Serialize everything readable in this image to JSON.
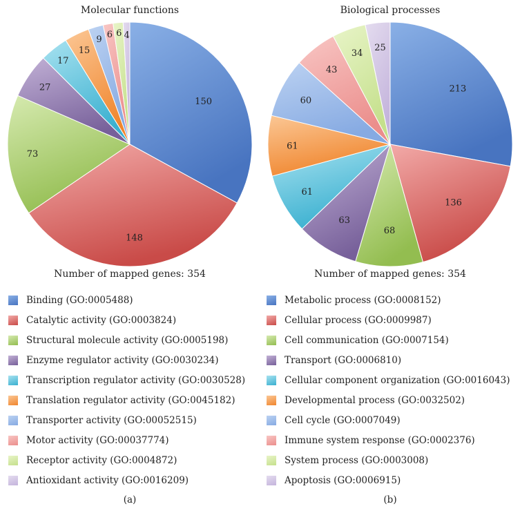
{
  "chart_data": [
    {
      "type": "pie",
      "title": "Molecular functions",
      "caption": "Number of mapped genes: 354",
      "panel_label": "(a)",
      "categories": [
        "Binding (GO:0005488)",
        "Catalytic activity (GO:0003824)",
        "Structural molecule activity (GO:0005198)",
        "Enzyme regulator activity (GO:0030234)",
        "Transcription regulator activity (GO:0030528)",
        "Translation regulator activity (GO:0045182)",
        "Transporter activity (GO:00052515)",
        "Motor activity (GO:00037774)",
        "Receptor activity (GO:0004872)",
        "Antioxidant activity (GO:0016209)"
      ],
      "values": [
        150,
        148,
        73,
        27,
        17,
        15,
        9,
        6,
        6,
        4
      ],
      "colors": [
        [
          "#8ab0e6",
          "#4874c0"
        ],
        [
          "#f2aaa8",
          "#c94b48"
        ],
        [
          "#d6eab0",
          "#93bd50"
        ],
        [
          "#c2b1d6",
          "#77609a"
        ],
        [
          "#a8e2f0",
          "#3ab0d0"
        ],
        [
          "#fbc795",
          "#f0862e"
        ],
        [
          "#bcd2f2",
          "#86aae2"
        ],
        [
          "#f8c6c4",
          "#eb8e8c"
        ],
        [
          "#e8f4c8",
          "#c5e08c"
        ],
        [
          "#e4dcef",
          "#c4b4dc"
        ]
      ]
    },
    {
      "type": "pie",
      "title": "Biological processes",
      "caption": "Number of mapped genes: 354",
      "panel_label": "(b)",
      "categories": [
        "Metabolic process (GO:0008152)",
        "Cellular process (GO:0009987)",
        "Cell communication (GO:0007154)",
        "Transport (GO:0006810)",
        "Cellular component organization (GO:0016043)",
        "Developmental process (GO:0032502)",
        "Cell cycle (GO:0007049)",
        "Immune system response (GO:0002376)",
        "System process (GO:0003008)",
        "Apoptosis (GO:0006915)"
      ],
      "values": [
        213,
        136,
        68,
        63,
        61,
        61,
        60,
        43,
        34,
        25
      ],
      "colors": [
        [
          "#8ab0e6",
          "#4874c0"
        ],
        [
          "#f2aaa8",
          "#c94b48"
        ],
        [
          "#d6eab0",
          "#93bd50"
        ],
        [
          "#c2b1d6",
          "#77609a"
        ],
        [
          "#a8e2f0",
          "#3ab0d0"
        ],
        [
          "#fbc795",
          "#f0862e"
        ],
        [
          "#bcd2f2",
          "#86aae2"
        ],
        [
          "#f8c6c4",
          "#eb8e8c"
        ],
        [
          "#e8f4c8",
          "#c5e08c"
        ],
        [
          "#e4dcef",
          "#c4b4dc"
        ]
      ]
    }
  ]
}
